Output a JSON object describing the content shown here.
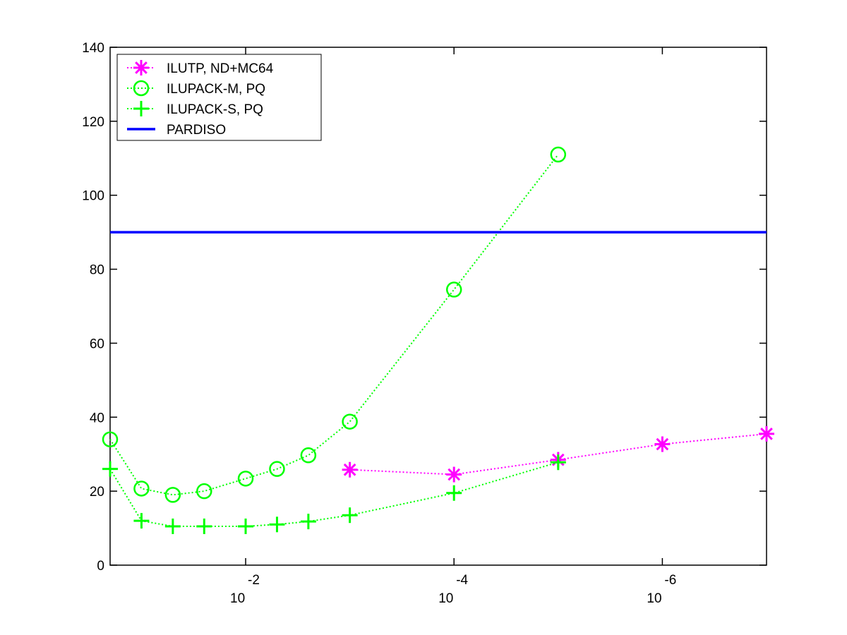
{
  "chart_data": {
    "type": "line",
    "xscale": "log",
    "xdirection": "reversed",
    "xlim": [
      0.2,
      1e-07
    ],
    "ylim": [
      0,
      140
    ],
    "yticks": [
      0,
      20,
      40,
      60,
      80,
      100,
      120,
      140
    ],
    "ytick_labels": [
      "0",
      "20",
      "40",
      "60",
      "80",
      "100",
      "120",
      "140"
    ],
    "xticks": [
      {
        "value": 0.01,
        "base": "10",
        "exponent": "-2"
      },
      {
        "value": 0.0001,
        "base": "10",
        "exponent": "-4"
      },
      {
        "value": 1e-06,
        "base": "10",
        "exponent": "-6"
      }
    ],
    "legend_position": "top-left",
    "series": [
      {
        "name": "ILUTP,  ND+MC64",
        "color": "#ff00ff",
        "marker": "asterisk",
        "line_style": "dotted",
        "x": [
          0.001,
          0.0001,
          1e-05,
          1e-06,
          1e-07
        ],
        "y": [
          25.8,
          24.5,
          28.5,
          32.7,
          35.5
        ]
      },
      {
        "name": "ILUPACK-M, PQ",
        "color": "#00ff00",
        "marker": "circle",
        "line_style": "dotted",
        "x": [
          0.2,
          0.1,
          0.05,
          0.025,
          0.01,
          0.005,
          0.0025,
          0.001,
          0.0001,
          1e-05
        ],
        "y": [
          34,
          20.7,
          19,
          20,
          23.4,
          26,
          29.7,
          38.8,
          74.5,
          111
        ]
      },
      {
        "name": "ILUPACK-S, PQ",
        "color": "#00ff00",
        "marker": "plus",
        "line_style": "dotted",
        "x": [
          0.2,
          0.1,
          0.05,
          0.025,
          0.01,
          0.005,
          0.0025,
          0.001,
          0.0001,
          1e-05
        ],
        "y": [
          26,
          12,
          10.5,
          10.5,
          10.5,
          11,
          11.8,
          13.5,
          19.5,
          27.8
        ]
      },
      {
        "name": "PARDISO",
        "color": "#0000ff",
        "marker": "none",
        "line_style": "solid",
        "x": [
          0.2,
          1e-07
        ],
        "y": [
          90,
          90
        ]
      }
    ]
  }
}
